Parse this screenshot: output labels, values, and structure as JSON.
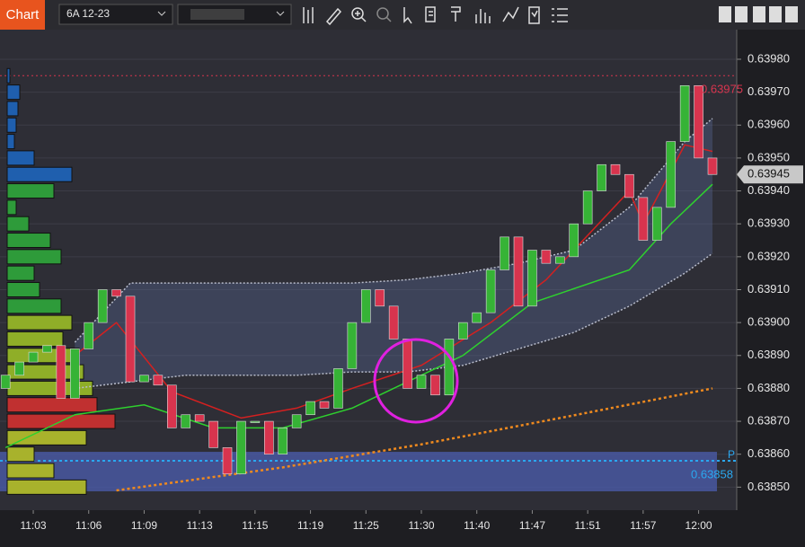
{
  "toolbar": {
    "title": "Chart",
    "instrument": "6A 12-23"
  },
  "chart_data": {
    "type": "candlestick",
    "open": [
      0.6388,
      0.63884,
      0.63888,
      0.63891,
      0.63893,
      0.63877,
      0.63892,
      0.639,
      0.6391,
      0.63908,
      0.63882,
      0.63884,
      0.63881,
      0.63868,
      0.63872,
      0.6387,
      0.63862,
      0.63854,
      0.6387,
      0.6387,
      0.6386,
      0.63868,
      0.63872,
      0.63876,
      0.63874,
      0.63886,
      0.639,
      0.6391,
      0.63905,
      0.63895,
      0.6388,
      0.63884,
      0.63878,
      0.63895,
      0.639,
      0.63903,
      0.63916,
      0.63926,
      0.63905,
      0.63922,
      0.63918,
      0.6392,
      0.6393,
      0.6394,
      0.63948,
      0.63945,
      0.63938,
      0.63925,
      0.63935,
      0.63955,
      0.63972,
      0.6395
    ],
    "close": [
      0.63884,
      0.63888,
      0.63891,
      0.63893,
      0.63877,
      0.63892,
      0.639,
      0.6391,
      0.63908,
      0.63882,
      0.63884,
      0.63881,
      0.63868,
      0.63872,
      0.6387,
      0.63862,
      0.63854,
      0.6387,
      0.6387,
      0.6386,
      0.63868,
      0.63872,
      0.63876,
      0.63874,
      0.63886,
      0.639,
      0.6391,
      0.63905,
      0.63895,
      0.6388,
      0.63884,
      0.63878,
      0.63895,
      0.639,
      0.63903,
      0.63916,
      0.63926,
      0.63905,
      0.63922,
      0.63918,
      0.6392,
      0.6393,
      0.6394,
      0.63948,
      0.63945,
      0.63938,
      0.63925,
      0.63935,
      0.63955,
      0.63972,
      0.6395,
      0.63945
    ],
    "up_color": "#36b336",
    "down_color": "#d8344e",
    "xlim": [
      -0.4,
      52.75
    ],
    "xticks": [
      {
        "value": 2,
        "label": "11:03"
      },
      {
        "value": 6,
        "label": "11:06"
      },
      {
        "value": 10,
        "label": "11:09"
      },
      {
        "value": 14,
        "label": "11:13"
      },
      {
        "value": 18,
        "label": "11:15"
      },
      {
        "value": 22,
        "label": "11:19"
      },
      {
        "value": 26,
        "label": "11:25"
      },
      {
        "value": 30,
        "label": "11:30"
      },
      {
        "value": 34,
        "label": "11:40"
      },
      {
        "value": 38,
        "label": "11:47"
      },
      {
        "value": 42,
        "label": "11:51"
      },
      {
        "value": 46,
        "label": "11:57"
      },
      {
        "value": 50,
        "label": "12:00"
      }
    ],
    "ylim": [
      0.63843,
      0.63989
    ],
    "yticks": [
      {
        "value": 0.6398,
        "label": "0.63980"
      },
      {
        "value": 0.6397,
        "label": "0.63970"
      },
      {
        "value": 0.6396,
        "label": "0.63960"
      },
      {
        "value": 0.6395,
        "label": "0.63950"
      },
      {
        "value": 0.6394,
        "label": "0.63940"
      },
      {
        "value": 0.6393,
        "label": "0.63930"
      },
      {
        "value": 0.6392,
        "label": "0.63920"
      },
      {
        "value": 0.6391,
        "label": "0.63910"
      },
      {
        "value": 0.639,
        "label": "0.63900"
      },
      {
        "value": 0.6389,
        "label": "0.63890"
      },
      {
        "value": 0.6388,
        "label": "0.63880"
      },
      {
        "value": 0.6387,
        "label": "0.63870"
      },
      {
        "value": 0.6386,
        "label": "0.63860"
      },
      {
        "value": 0.6385,
        "label": "0.63850"
      }
    ],
    "grid": true,
    "lines": [
      {
        "color": "#b8bccb",
        "dash": "2 2",
        "x": [
          5,
          9,
          13,
          17,
          21,
          25,
          29,
          33,
          37,
          41,
          45,
          49,
          51
        ],
        "values": [
          0.63894,
          0.63912,
          0.63912,
          0.63912,
          0.63912,
          0.63912,
          0.63913,
          0.63915,
          0.63918,
          0.63922,
          0.63935,
          0.63955,
          0.63962
        ]
      },
      {
        "color": "#b8bccb",
        "dash": "2 2",
        "x": [
          5,
          9,
          13,
          17,
          21,
          25,
          29,
          33,
          37,
          41,
          45,
          49,
          51
        ],
        "values": [
          0.6388,
          0.63882,
          0.63884,
          0.63884,
          0.63884,
          0.63885,
          0.63885,
          0.63887,
          0.63892,
          0.63897,
          0.63905,
          0.63915,
          0.63921
        ]
      },
      {
        "color": "#d42020",
        "dash": "",
        "x": [
          5,
          8,
          12,
          17,
          21,
          25,
          30,
          35,
          39,
          45,
          46,
          49,
          51
        ],
        "values": [
          0.6389,
          0.639,
          0.63879,
          0.63871,
          0.63874,
          0.6388,
          0.63887,
          0.639,
          0.63913,
          0.6394,
          0.6393,
          0.63954,
          0.63952
        ]
      },
      {
        "color": "#2ed12e",
        "dash": "",
        "x": [
          0,
          5,
          10,
          15,
          20,
          25,
          29,
          33,
          38,
          45,
          48,
          51
        ],
        "values": [
          0.63862,
          0.63872,
          0.63875,
          0.63868,
          0.63868,
          0.63874,
          0.63882,
          0.6389,
          0.63906,
          0.63916,
          0.6393,
          0.63942
        ]
      },
      {
        "color": "#f08a1e",
        "dash": "3 3",
        "x": [
          8,
          20,
          30,
          40,
          51
        ],
        "values": [
          0.63849,
          0.63856,
          0.63863,
          0.63871,
          0.6388
        ]
      }
    ],
    "profile": {
      "levels": [
        0.63975,
        0.6397,
        0.63965,
        0.6396,
        0.63955,
        0.6395,
        0.63945,
        0.6394,
        0.63935,
        0.6393,
        0.63925,
        0.6392,
        0.63915,
        0.6391,
        0.63905,
        0.639,
        0.63895,
        0.6389,
        0.63885,
        0.6388,
        0.63875,
        0.6387,
        0.63865,
        0.6386,
        0.63855,
        0.6385
      ],
      "values": [
        3,
        14,
        12,
        10,
        8,
        30,
        72,
        52,
        10,
        24,
        48,
        60,
        30,
        36,
        60,
        72,
        62,
        80,
        85,
        95,
        100,
        120,
        88,
        30,
        52,
        88
      ]
    },
    "high_line": {
      "value": 0.63975,
      "label": "0.63975",
      "color": "#d8344e"
    },
    "last_price": {
      "value": 0.63945,
      "label": "0.63945"
    },
    "pivot": {
      "value": 0.63858,
      "label": "0.63858",
      "tag": "P",
      "color": "#2aa8f0"
    }
  }
}
